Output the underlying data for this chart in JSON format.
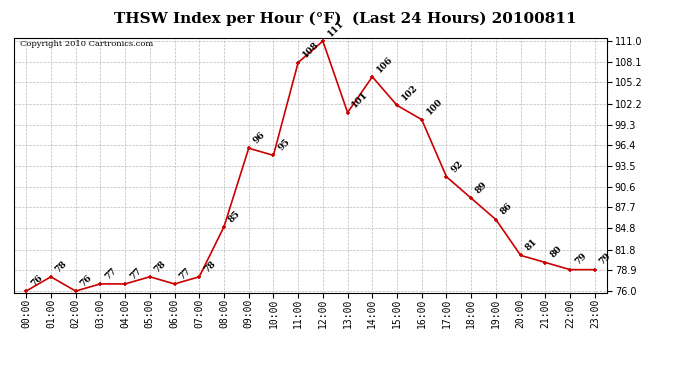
{
  "title": "THSW Index per Hour (°F)  (Last 24 Hours) 20100811",
  "copyright": "Copyright 2010 Cartronics.com",
  "hours": [
    "00:00",
    "01:00",
    "02:00",
    "03:00",
    "04:00",
    "05:00",
    "06:00",
    "07:00",
    "08:00",
    "09:00",
    "10:00",
    "11:00",
    "12:00",
    "13:00",
    "14:00",
    "15:00",
    "16:00",
    "17:00",
    "18:00",
    "19:00",
    "20:00",
    "21:00",
    "22:00",
    "23:00"
  ],
  "values": [
    76,
    78,
    76,
    77,
    77,
    78,
    77,
    78,
    85,
    96,
    95,
    108,
    111,
    101,
    106,
    102,
    100,
    92,
    89,
    86,
    81,
    80,
    79,
    79
  ],
  "labels": [
    "76",
    "78",
    "76",
    "77",
    "77",
    "78",
    "77",
    "78",
    "85",
    "96",
    "95",
    "108",
    "111",
    "101",
    "106",
    "102",
    "100",
    "92",
    "89",
    "86",
    "81",
    "80",
    "79",
    "79"
  ],
  "ymin": 76.0,
  "ymax": 111.0,
  "yticks": [
    76.0,
    78.9,
    81.8,
    84.8,
    87.7,
    90.6,
    93.5,
    96.4,
    99.3,
    102.2,
    105.2,
    108.1,
    111.0
  ],
  "line_color": "#cc0000",
  "marker_color": "#cc0000",
  "bg_color": "#ffffff",
  "grid_color": "#bbbbbb",
  "title_fontsize": 11,
  "tick_fontsize": 7,
  "annotation_fontsize": 6.5,
  "copyright_fontsize": 6
}
